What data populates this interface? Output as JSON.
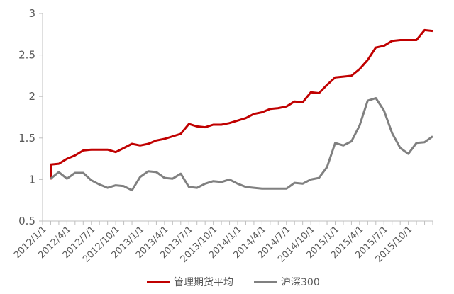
{
  "chart_data": {
    "type": "line",
    "title": "",
    "xlabel": "",
    "ylabel": "",
    "ylim": [
      0.5,
      3
    ],
    "yticks": [
      "0.5",
      "1",
      "1.5",
      "2",
      "2.5",
      "3"
    ],
    "grid": false,
    "legend_position": "bottom",
    "x": [
      "2012/1/1",
      "2012/2/1",
      "2012/3/1",
      "2012/4/1",
      "2012/5/1",
      "2012/6/1",
      "2012/7/1",
      "2012/8/1",
      "2012/9/1",
      "2012/10/1",
      "2012/11/1",
      "2012/12/1",
      "2013/1/1",
      "2013/2/1",
      "2013/3/1",
      "2013/4/1",
      "2013/5/1",
      "2013/6/1",
      "2013/7/1",
      "2013/8/1",
      "2013/9/1",
      "2013/10/1",
      "2013/11/1",
      "2013/12/1",
      "2014/1/1",
      "2014/2/1",
      "2014/3/1",
      "2014/4/1",
      "2014/5/1",
      "2014/6/1",
      "2014/7/1",
      "2014/8/1",
      "2014/9/1",
      "2014/10/1",
      "2014/11/1",
      "2014/12/1",
      "2015/1/1",
      "2015/2/1",
      "2015/3/1",
      "2015/4/1",
      "2015/5/1",
      "2015/6/1",
      "2015/7/1",
      "2015/8/1",
      "2015/9/1",
      "2015/10/1",
      "2015/11/1",
      "2015/12/1"
    ],
    "xtick_labels": [
      "2012/1/1",
      "2012/4/1",
      "2012/7/1",
      "2012/10/1",
      "2013/1/1",
      "2013/4/1",
      "2013/7/1",
      "2013/10/1",
      "2014/1/1",
      "2014/4/1",
      "2014/7/1",
      "2014/10/1",
      "2015/1/1",
      "2015/4/1",
      "2015/7/1",
      "2015/10/1"
    ],
    "series": [
      {
        "name": "管理期货平均",
        "color": "#c00000",
        "start_value": 1.0,
        "values": [
          1.18,
          1.19,
          1.25,
          1.29,
          1.35,
          1.36,
          1.36,
          1.36,
          1.33,
          1.38,
          1.43,
          1.41,
          1.43,
          1.47,
          1.49,
          1.52,
          1.55,
          1.67,
          1.64,
          1.63,
          1.66,
          1.66,
          1.68,
          1.71,
          1.74,
          1.79,
          1.81,
          1.85,
          1.86,
          1.88,
          1.94,
          1.93,
          2.05,
          2.04,
          2.14,
          2.23,
          2.24,
          2.25,
          2.33,
          2.44,
          2.59,
          2.61,
          2.67,
          2.68,
          2.68,
          2.68,
          2.8,
          2.79
        ]
      },
      {
        "name": "沪深300",
        "color": "#808080",
        "values": [
          1.01,
          1.09,
          1.01,
          1.08,
          1.08,
          0.99,
          0.94,
          0.9,
          0.93,
          0.92,
          0.87,
          1.03,
          1.1,
          1.09,
          1.02,
          1.01,
          1.07,
          0.91,
          0.9,
          0.95,
          0.98,
          0.97,
          1.0,
          0.95,
          0.91,
          0.9,
          0.89,
          0.89,
          0.89,
          0.89,
          0.96,
          0.95,
          1.0,
          1.02,
          1.15,
          1.44,
          1.41,
          1.46,
          1.65,
          1.95,
          1.98,
          1.83,
          1.56,
          1.38,
          1.31,
          1.44,
          1.45,
          1.52
        ]
      }
    ]
  }
}
